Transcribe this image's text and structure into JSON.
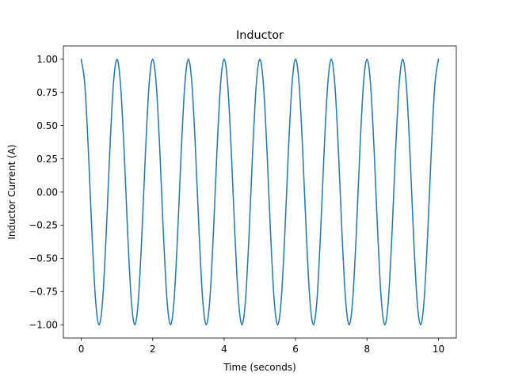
{
  "chart_data": {
    "type": "line",
    "title": "Inductor",
    "xlabel": "Time (seconds)",
    "ylabel": "Inductor Current (A)",
    "xlim": [
      -0.5,
      10.5
    ],
    "ylim": [
      -1.1,
      1.1
    ],
    "xticks": [
      0,
      2,
      4,
      6,
      8,
      10
    ],
    "xtick_labels": [
      "0",
      "2",
      "4",
      "6",
      "8",
      "10"
    ],
    "yticks": [
      -1.0,
      -0.75,
      -0.5,
      -0.25,
      0.0,
      0.25,
      0.5,
      0.75,
      1.0
    ],
    "ytick_labels": [
      "−1.00",
      "−0.75",
      "−0.50",
      "−0.25",
      "0.00",
      "0.25",
      "0.50",
      "0.75",
      "1.00"
    ],
    "grid": false,
    "series": [
      {
        "color": "#1f77b4",
        "x": [
          0,
          0.1,
          0.2,
          0.3,
          0.4,
          0.5,
          0.6,
          0.7,
          0.8,
          0.9,
          1.0,
          1.1,
          1.2,
          1.3,
          1.4,
          1.5,
          1.6,
          1.7,
          1.8,
          1.9,
          2.0,
          2.1,
          2.2,
          2.3,
          2.4,
          2.5,
          2.6,
          2.7,
          2.8,
          2.9,
          3.0,
          3.1,
          3.2,
          3.3,
          3.4,
          3.5,
          3.6,
          3.7,
          3.8,
          3.9,
          4.0,
          4.1,
          4.2,
          4.3,
          4.4,
          4.5,
          4.6,
          4.7,
          4.8,
          4.9,
          5.0,
          5.1,
          5.2,
          5.3,
          5.4,
          5.5,
          5.6,
          5.7,
          5.8,
          5.9,
          6.0,
          6.1,
          6.2,
          6.3,
          6.4,
          6.5,
          6.6,
          6.7,
          6.8,
          6.9,
          7.0,
          7.1,
          7.2,
          7.3,
          7.4,
          7.5,
          7.6,
          7.7,
          7.8,
          7.9,
          8.0,
          8.1,
          8.2,
          8.3,
          8.4,
          8.5,
          8.6,
          8.7,
          8.8,
          8.9,
          9.0,
          9.1,
          9.2,
          9.3,
          9.4,
          9.5,
          9.6,
          9.7,
          9.8,
          9.9,
          10.0
        ],
        "y": [
          1.0,
          0.81,
          0.31,
          -0.31,
          -0.81,
          -1.0,
          -0.81,
          -0.31,
          0.31,
          0.81,
          1.0,
          0.81,
          0.31,
          -0.31,
          -0.81,
          -1.0,
          -0.81,
          -0.31,
          0.31,
          0.81,
          1.0,
          0.81,
          0.31,
          -0.31,
          -0.81,
          -1.0,
          -0.81,
          -0.31,
          0.31,
          0.81,
          1.0,
          0.81,
          0.31,
          -0.31,
          -0.81,
          -1.0,
          -0.81,
          -0.31,
          0.31,
          0.81,
          1.0,
          0.81,
          0.31,
          -0.31,
          -0.81,
          -1.0,
          -0.81,
          -0.31,
          0.31,
          0.81,
          1.0,
          0.81,
          0.31,
          -0.31,
          -0.81,
          -1.0,
          -0.81,
          -0.31,
          0.31,
          0.81,
          1.0,
          0.81,
          0.31,
          -0.31,
          -0.81,
          -1.0,
          -0.81,
          -0.31,
          0.31,
          0.81,
          1.0,
          0.81,
          0.31,
          -0.31,
          -0.81,
          -1.0,
          -0.81,
          -0.31,
          0.31,
          0.81,
          1.0,
          0.81,
          0.31,
          -0.31,
          -0.81,
          -1.0,
          -0.81,
          -0.31,
          0.31,
          0.81,
          1.0,
          0.81,
          0.31,
          -0.31,
          -0.81,
          -1.0,
          -0.81,
          -0.31,
          0.31,
          0.81,
          1.0
        ]
      }
    ]
  }
}
